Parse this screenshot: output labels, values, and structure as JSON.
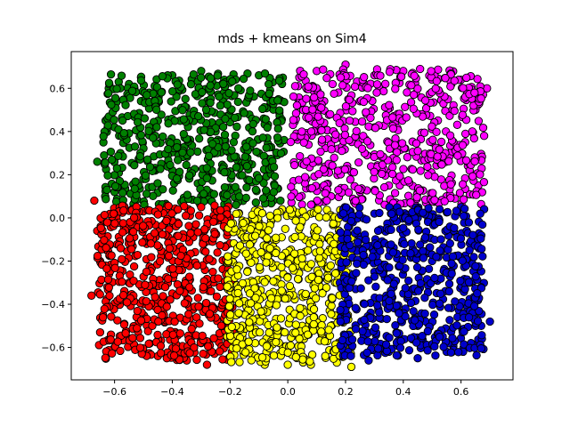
{
  "chart_data": {
    "type": "scatter",
    "title": "mds + kmeans on Sim4",
    "xlabel": "",
    "ylabel": "",
    "xlim": [
      -0.75,
      0.78
    ],
    "ylim": [
      -0.75,
      0.77
    ],
    "xticks": [
      -0.6,
      -0.4,
      -0.2,
      0.0,
      0.2,
      0.4,
      0.6
    ],
    "xtick_labels": [
      "−0.6",
      "−0.4",
      "−0.2",
      "0.0",
      "0.2",
      "0.4",
      "0.6"
    ],
    "yticks": [
      -0.6,
      -0.4,
      -0.2,
      0.0,
      0.2,
      0.4,
      0.6
    ],
    "ytick_labels": [
      "−0.6",
      "−0.4",
      "−0.2",
      "0.0",
      "0.2",
      "0.4",
      "0.6"
    ],
    "grid": false,
    "legend": "none",
    "series": [
      {
        "color": "#008000",
        "count": 1000,
        "region": "x from -0.65 to 0.0, y from 0.05 to 0.69",
        "points": [
          [
            -0.62,
            0.6
          ],
          [
            -0.55,
            0.62
          ],
          [
            -0.48,
            0.58
          ],
          [
            -0.4,
            0.66
          ],
          [
            -0.3,
            0.68
          ],
          [
            -0.22,
            0.64
          ],
          [
            -0.1,
            0.66
          ],
          [
            -0.02,
            0.62
          ],
          [
            -0.6,
            0.42
          ],
          [
            -0.58,
            0.3
          ],
          [
            -0.66,
            0.26
          ],
          [
            -0.6,
            0.12
          ],
          [
            -0.5,
            0.18
          ],
          [
            -0.4,
            0.22
          ],
          [
            -0.3,
            0.1
          ],
          [
            -0.2,
            0.14
          ],
          [
            -0.1,
            0.3
          ],
          [
            -0.05,
            0.08
          ],
          [
            -0.25,
            0.4
          ],
          [
            -0.45,
            0.45
          ]
        ]
      },
      {
        "color": "#ff00ff",
        "count": 1000,
        "region": "x from 0.0 to 0.70, y from 0.05 to 0.71",
        "points": [
          [
            0.04,
            0.65
          ],
          [
            0.1,
            0.68
          ],
          [
            0.2,
            0.71
          ],
          [
            0.3,
            0.66
          ],
          [
            0.4,
            0.68
          ],
          [
            0.5,
            0.64
          ],
          [
            0.6,
            0.64
          ],
          [
            0.69,
            0.6
          ],
          [
            0.65,
            0.5
          ],
          [
            0.68,
            0.38
          ],
          [
            0.66,
            0.28
          ],
          [
            0.66,
            0.15
          ],
          [
            0.55,
            0.1
          ],
          [
            0.45,
            0.12
          ],
          [
            0.35,
            0.15
          ],
          [
            0.25,
            0.12
          ],
          [
            0.15,
            0.1
          ],
          [
            0.05,
            0.25
          ],
          [
            0.1,
            0.4
          ],
          [
            0.5,
            0.35
          ]
        ]
      },
      {
        "color": "#ff0000",
        "count": 1000,
        "region": "x from -0.69 to -0.18, y from -0.69 to 0.08",
        "points": [
          [
            -0.67,
            0.08
          ],
          [
            -0.66,
            -0.06
          ],
          [
            -0.65,
            -0.2
          ],
          [
            -0.68,
            -0.36
          ],
          [
            -0.64,
            -0.45
          ],
          [
            -0.65,
            -0.53
          ],
          [
            -0.6,
            -0.6
          ],
          [
            -0.5,
            -0.63
          ],
          [
            -0.4,
            -0.61
          ],
          [
            -0.3,
            -0.58
          ],
          [
            -0.28,
            -0.68
          ],
          [
            -0.35,
            -0.66
          ],
          [
            -0.45,
            -0.64
          ],
          [
            -0.2,
            -0.45
          ],
          [
            -0.22,
            -0.2
          ],
          [
            -0.2,
            0.0
          ],
          [
            -0.3,
            0.05
          ],
          [
            -0.5,
            0.03
          ],
          [
            -0.55,
            -0.3
          ],
          [
            -0.4,
            -0.35
          ]
        ]
      },
      {
        "color": "#ffff00",
        "count": 1000,
        "region": "x from -0.22 to 0.23, y from -0.69 to 0.05",
        "points": [
          [
            -0.02,
            0.04
          ],
          [
            0.08,
            0.02
          ],
          [
            -0.1,
            -0.02
          ],
          [
            0.15,
            -0.1
          ],
          [
            -0.15,
            -0.1
          ],
          [
            -0.2,
            -0.4
          ],
          [
            -0.21,
            -0.55
          ],
          [
            -0.15,
            -0.63
          ],
          [
            -0.08,
            -0.68
          ],
          [
            0.0,
            -0.68
          ],
          [
            0.08,
            -0.68
          ],
          [
            0.17,
            -0.67
          ],
          [
            0.22,
            -0.69
          ],
          [
            0.22,
            -0.6
          ],
          [
            0.2,
            -0.4
          ],
          [
            0.1,
            -0.3
          ],
          [
            0.0,
            -0.2
          ],
          [
            -0.1,
            -0.35
          ],
          [
            0.05,
            -0.5
          ],
          [
            -0.05,
            -0.55
          ]
        ]
      },
      {
        "color": "#0000cd",
        "count": 1000,
        "region": "x from 0.17 to 0.70, y from -0.66 to 0.06",
        "points": [
          [
            0.2,
            0.0
          ],
          [
            0.3,
            0.02
          ],
          [
            0.45,
            0.03
          ],
          [
            0.6,
            0.05
          ],
          [
            0.68,
            0.04
          ],
          [
            0.66,
            -0.1
          ],
          [
            0.63,
            -0.3
          ],
          [
            0.67,
            -0.5
          ],
          [
            0.7,
            -0.48
          ],
          [
            0.66,
            -0.58
          ],
          [
            0.55,
            -0.62
          ],
          [
            0.45,
            -0.65
          ],
          [
            0.35,
            -0.62
          ],
          [
            0.28,
            -0.66
          ],
          [
            0.2,
            -0.55
          ],
          [
            0.18,
            -0.3
          ],
          [
            0.3,
            -0.25
          ],
          [
            0.4,
            -0.35
          ],
          [
            0.5,
            -0.2
          ],
          [
            0.45,
            -0.5
          ]
        ]
      }
    ]
  }
}
